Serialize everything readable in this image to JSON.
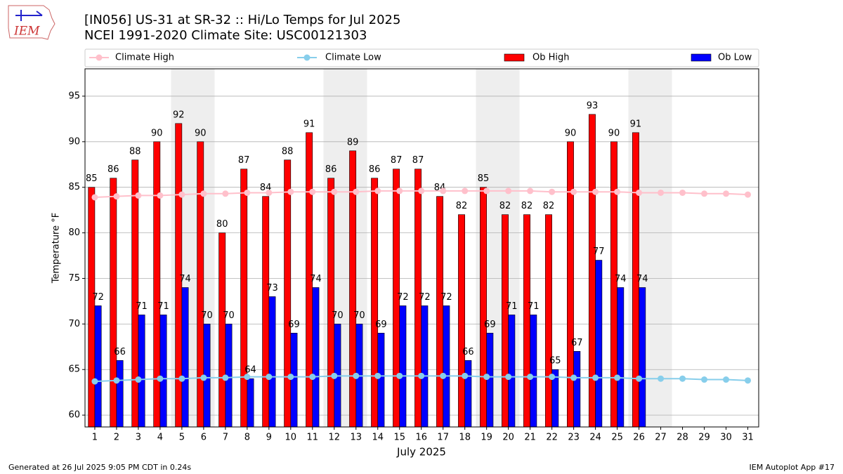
{
  "logo": "IEM",
  "footer": {
    "left": "Generated at 26 Jul 2025 9:05 PM CDT in 0.24s",
    "right": "IEM Autoplot App #17"
  },
  "chart_data": {
    "type": "bar",
    "title": "[IN056] US-31 at SR-32  :: Hi/Lo Temps for Jul 2025",
    "subtitle": "NCEI 1991-2020 Climate Site: USC00121303",
    "xlabel": "July 2025",
    "ylabel": "Temperature °F",
    "x": [
      1,
      2,
      3,
      4,
      5,
      6,
      7,
      8,
      9,
      10,
      11,
      12,
      13,
      14,
      15,
      16,
      17,
      18,
      19,
      20,
      21,
      22,
      23,
      24,
      25,
      26,
      27,
      28,
      29,
      30,
      31
    ],
    "xlim": [
      0.55,
      31.5
    ],
    "xticks": [
      1,
      2,
      3,
      4,
      5,
      6,
      7,
      8,
      9,
      10,
      11,
      12,
      13,
      14,
      15,
      16,
      17,
      18,
      19,
      20,
      21,
      22,
      23,
      24,
      25,
      26,
      27,
      28,
      29,
      30,
      31
    ],
    "ylim": [
      58.7,
      98
    ],
    "yticks": [
      60,
      65,
      70,
      75,
      80,
      85,
      90,
      95
    ],
    "grid": true,
    "series": [
      {
        "name": "Climate High",
        "kind": "line",
        "color": "#ffc0cb",
        "values": [
          83.9,
          84.0,
          84.1,
          84.1,
          84.2,
          84.3,
          84.3,
          84.4,
          84.4,
          84.5,
          84.5,
          84.5,
          84.5,
          84.6,
          84.6,
          84.6,
          84.6,
          84.6,
          84.6,
          84.6,
          84.6,
          84.5,
          84.5,
          84.5,
          84.5,
          84.4,
          84.4,
          84.4,
          84.3,
          84.3,
          84.2
        ]
      },
      {
        "name": "Climate Low",
        "kind": "line",
        "color": "#87ceeb",
        "values": [
          63.7,
          63.8,
          63.9,
          64.0,
          64.0,
          64.1,
          64.1,
          64.2,
          64.2,
          64.2,
          64.2,
          64.3,
          64.3,
          64.3,
          64.3,
          64.3,
          64.3,
          64.3,
          64.2,
          64.2,
          64.2,
          64.2,
          64.1,
          64.1,
          64.1,
          64.0,
          64.0,
          64.0,
          63.9,
          63.9,
          63.8
        ]
      },
      {
        "name": "Ob High",
        "kind": "bar",
        "color": "#ff0000",
        "values": [
          85,
          86,
          88,
          90,
          92,
          90,
          80,
          87,
          84,
          88,
          91,
          86,
          89,
          86,
          87,
          87,
          84,
          82,
          85,
          82,
          82,
          82,
          90,
          93,
          90,
          91,
          null,
          null,
          null,
          null,
          null
        ]
      },
      {
        "name": "Ob Low",
        "kind": "bar",
        "color": "#0000ff",
        "values": [
          72,
          66,
          71,
          71,
          74,
          70,
          70,
          64,
          73,
          69,
          74,
          70,
          70,
          69,
          72,
          72,
          72,
          66,
          69,
          71,
          71,
          65,
          67,
          77,
          74,
          74,
          null,
          null,
          null,
          null,
          null
        ]
      }
    ]
  }
}
